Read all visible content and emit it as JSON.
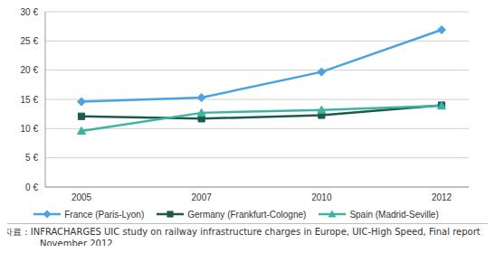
{
  "chart_data": {
    "type": "line",
    "categories": [
      "2005",
      "2007",
      "2010",
      "2012"
    ],
    "series": [
      {
        "name": "France (Paris-Lyon)",
        "color": "#4aa3df",
        "marker": "diamond",
        "values": [
          14.6,
          15.3,
          19.7,
          26.9
        ]
      },
      {
        "name": "Germany (Frankfurt-Cologne)",
        "color": "#1e5a4c",
        "marker": "square",
        "values": [
          12.1,
          11.7,
          12.3,
          14.0
        ]
      },
      {
        "name": "Spain (Madrid-Seville)",
        "color": "#3db3a4",
        "marker": "triangle",
        "values": [
          9.6,
          12.7,
          13.2,
          13.9
        ]
      }
    ],
    "ylim": [
      0,
      30
    ],
    "yticks": [
      {
        "value": 0,
        "label": "0 €"
      },
      {
        "value": 5,
        "label": "5 €"
      },
      {
        "value": 10,
        "label": "10 €"
      },
      {
        "value": 15,
        "label": "15 €"
      },
      {
        "value": 20,
        "label": "20 €"
      },
      {
        "value": 25,
        "label": "25 €"
      },
      {
        "value": 30,
        "label": "30 €"
      }
    ],
    "grid": true,
    "legend": "bottom",
    "annotations": [
      "자료 : INFRACHARGES UIC study on railway infrastructure charges in Europe, UIC-High Speed, Final report",
      "November 2012"
    ]
  }
}
